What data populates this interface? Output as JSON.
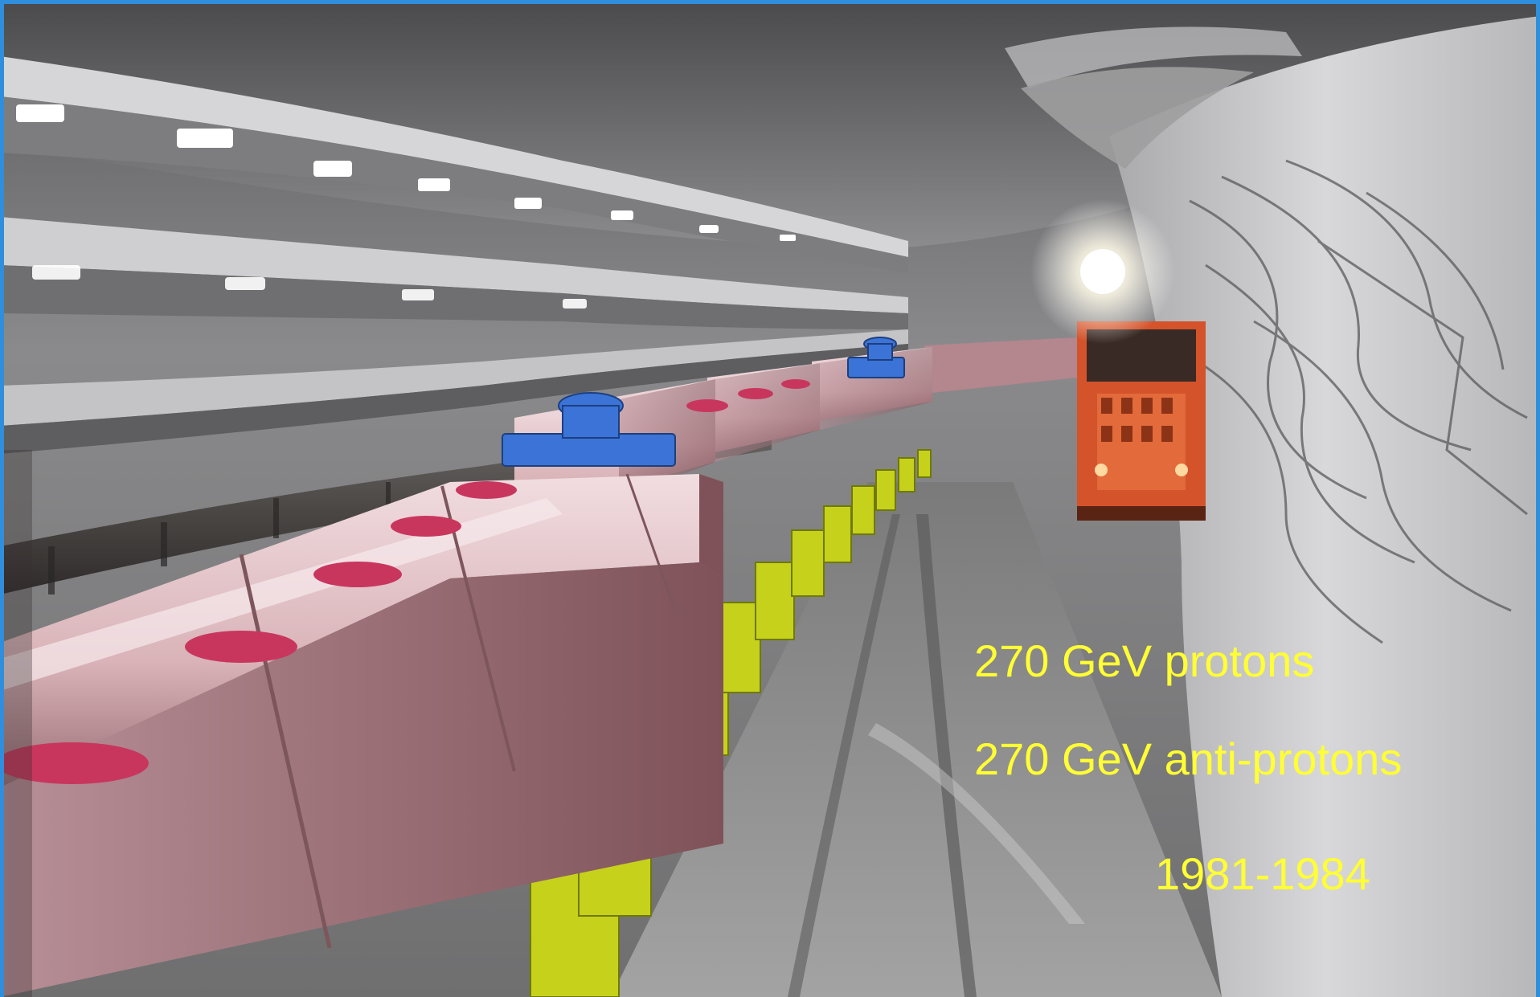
{
  "slide": {
    "image_subject": "accelerator-tunnel-photo",
    "captions": {
      "line1": "270 GeV protons",
      "line2": "270 GeV anti-protons",
      "line3": "1981-1984"
    },
    "colors": {
      "caption_text": "#ffff33",
      "frame_blue": "#2f8fdc",
      "magnet_pink": "#d9b3b8",
      "support_yellow": "#c6d11c",
      "vehicle_orange": "#d4532a",
      "flange_blue": "#3b74d6",
      "tunnel_grey": "#8e8e8e"
    }
  }
}
